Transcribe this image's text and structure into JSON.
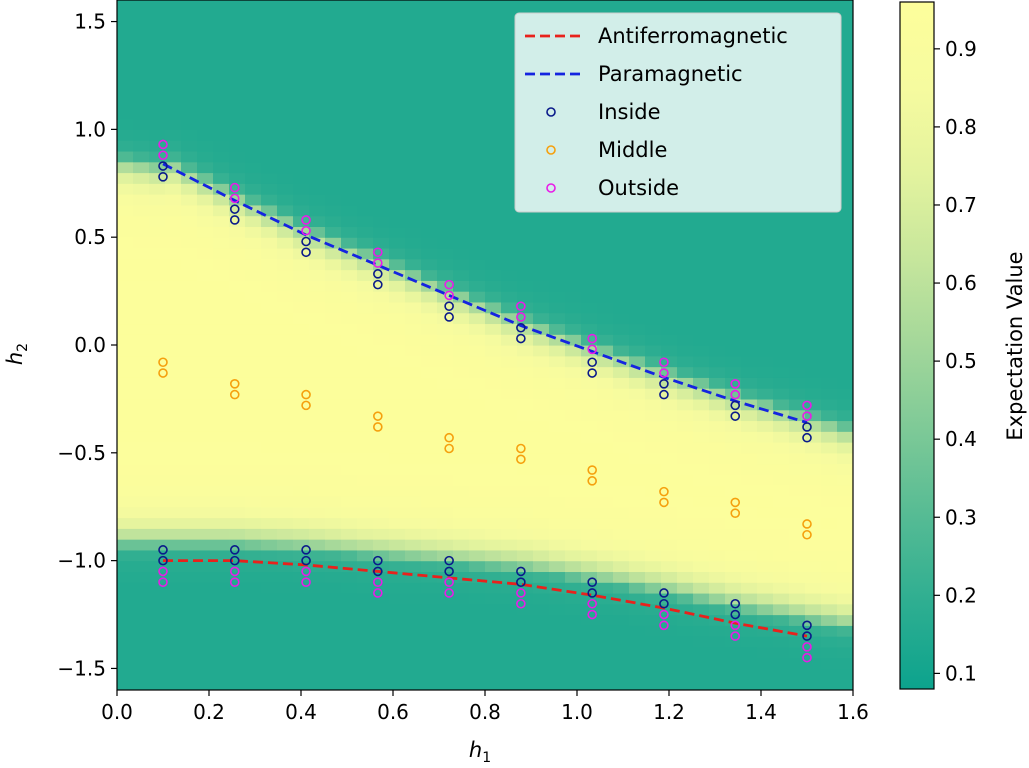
{
  "chart_data": {
    "type": "heatmap",
    "xlabel": "h",
    "xlabel_sub": "1",
    "ylabel": "h",
    "ylabel_sub": "2",
    "xlim": [
      0.0,
      1.6
    ],
    "ylim": [
      -1.6,
      1.6
    ],
    "x_ticks": [
      0.0,
      0.2,
      0.4,
      0.6,
      0.8,
      1.0,
      1.2,
      1.4,
      1.6
    ],
    "x_tick_labels": [
      "0.0",
      "0.2",
      "0.4",
      "0.6",
      "0.8",
      "1.0",
      "1.2",
      "1.4",
      "1.6"
    ],
    "y_ticks": [
      -1.5,
      -1.0,
      -0.5,
      0.0,
      0.5,
      1.0,
      1.5
    ],
    "y_tick_labels": [
      "−1.5",
      "−1.0",
      "−0.5",
      "0.0",
      "0.5",
      "1.0",
      "1.5"
    ],
    "grid": false,
    "legend_position": "top-right",
    "colorbar": {
      "label": "Expectation Value",
      "range": [
        0.08,
        0.96
      ],
      "ticks": [
        0.1,
        0.2,
        0.3,
        0.4,
        0.5,
        0.6,
        0.7,
        0.8,
        0.9
      ],
      "tick_labels": [
        "0.1",
        "0.2",
        "0.3",
        "0.4",
        "0.5",
        "0.6",
        "0.7",
        "0.8",
        "0.9"
      ],
      "colormap": [
        "#0ca38d",
        "#2eae91",
        "#55bb94",
        "#7dc997",
        "#a3d79a",
        "#c6e69c",
        "#e3f39e",
        "#f6fb9f",
        "#fdfe9b"
      ]
    },
    "heatmap": {
      "background_value": 0.15,
      "peak_value": 0.95,
      "upper_boundary_point": [
        0.1,
        0.85
      ],
      "lower_boundary_y": -0.92
    },
    "series": [
      {
        "name": "Antiferromagnetic",
        "kind": "line",
        "style": "dashed",
        "color": "#e8221c",
        "x": [
          0.1,
          0.256,
          0.411,
          0.567,
          0.722,
          0.878,
          1.033,
          1.189,
          1.344,
          1.5
        ],
        "y": [
          -1.0,
          -1.0,
          -1.02,
          -1.05,
          -1.08,
          -1.11,
          -1.16,
          -1.22,
          -1.29,
          -1.35
        ]
      },
      {
        "name": "Paramagnetic",
        "kind": "line",
        "style": "dashed",
        "color": "#1424e0",
        "x": [
          0.1,
          0.256,
          0.411,
          0.567,
          0.722,
          0.878,
          1.033,
          1.189,
          1.344,
          1.5
        ],
        "y": [
          0.84,
          0.67,
          0.51,
          0.37,
          0.23,
          0.09,
          -0.03,
          -0.15,
          -0.26,
          -0.36
        ]
      },
      {
        "name": "Inside",
        "kind": "scatter",
        "color": "#0a1a8a",
        "points": [
          [
            0.1,
            0.83
          ],
          [
            0.1,
            0.78
          ],
          [
            0.1,
            -0.95
          ],
          [
            0.1,
            -1.0
          ],
          [
            0.256,
            0.63
          ],
          [
            0.256,
            0.58
          ],
          [
            0.256,
            -0.95
          ],
          [
            0.256,
            -1.0
          ],
          [
            0.411,
            0.48
          ],
          [
            0.411,
            0.43
          ],
          [
            0.411,
            -0.95
          ],
          [
            0.411,
            -1.0
          ],
          [
            0.567,
            0.33
          ],
          [
            0.567,
            0.28
          ],
          [
            0.567,
            -1.0
          ],
          [
            0.567,
            -1.05
          ],
          [
            0.722,
            0.18
          ],
          [
            0.722,
            0.13
          ],
          [
            0.722,
            -1.0
          ],
          [
            0.722,
            -1.05
          ],
          [
            0.878,
            0.08
          ],
          [
            0.878,
            0.03
          ],
          [
            0.878,
            -1.05
          ],
          [
            0.878,
            -1.1
          ],
          [
            1.033,
            -0.08
          ],
          [
            1.033,
            -0.13
          ],
          [
            1.033,
            -1.1
          ],
          [
            1.033,
            -1.15
          ],
          [
            1.189,
            -0.18
          ],
          [
            1.189,
            -0.23
          ],
          [
            1.189,
            -1.15
          ],
          [
            1.189,
            -1.2
          ],
          [
            1.344,
            -0.28
          ],
          [
            1.344,
            -0.33
          ],
          [
            1.344,
            -1.2
          ],
          [
            1.344,
            -1.25
          ],
          [
            1.5,
            -0.38
          ],
          [
            1.5,
            -0.43
          ],
          [
            1.5,
            -1.3
          ],
          [
            1.5,
            -1.35
          ]
        ]
      },
      {
        "name": "Middle",
        "kind": "scatter",
        "color": "#f5a00e",
        "points": [
          [
            0.1,
            -0.08
          ],
          [
            0.1,
            -0.13
          ],
          [
            0.256,
            -0.18
          ],
          [
            0.256,
            -0.23
          ],
          [
            0.411,
            -0.23
          ],
          [
            0.411,
            -0.28
          ],
          [
            0.567,
            -0.33
          ],
          [
            0.567,
            -0.38
          ],
          [
            0.722,
            -0.43
          ],
          [
            0.722,
            -0.48
          ],
          [
            0.878,
            -0.48
          ],
          [
            0.878,
            -0.53
          ],
          [
            1.033,
            -0.58
          ],
          [
            1.033,
            -0.63
          ],
          [
            1.189,
            -0.68
          ],
          [
            1.189,
            -0.73
          ],
          [
            1.344,
            -0.73
          ],
          [
            1.344,
            -0.78
          ],
          [
            1.5,
            -0.83
          ],
          [
            1.5,
            -0.88
          ]
        ]
      },
      {
        "name": "Outside",
        "kind": "scatter",
        "color": "#e81ce8",
        "points": [
          [
            0.1,
            0.93
          ],
          [
            0.1,
            0.88
          ],
          [
            0.1,
            -1.05
          ],
          [
            0.1,
            -1.1
          ],
          [
            0.256,
            0.73
          ],
          [
            0.256,
            0.68
          ],
          [
            0.256,
            -1.05
          ],
          [
            0.256,
            -1.1
          ],
          [
            0.411,
            0.58
          ],
          [
            0.411,
            0.53
          ],
          [
            0.411,
            -1.05
          ],
          [
            0.411,
            -1.1
          ],
          [
            0.567,
            0.43
          ],
          [
            0.567,
            0.38
          ],
          [
            0.567,
            -1.1
          ],
          [
            0.567,
            -1.15
          ],
          [
            0.722,
            0.28
          ],
          [
            0.722,
            0.23
          ],
          [
            0.722,
            -1.1
          ],
          [
            0.722,
            -1.15
          ],
          [
            0.878,
            0.18
          ],
          [
            0.878,
            0.13
          ],
          [
            0.878,
            -1.15
          ],
          [
            0.878,
            -1.2
          ],
          [
            1.033,
            0.03
          ],
          [
            1.033,
            -0.02
          ],
          [
            1.033,
            -1.2
          ],
          [
            1.033,
            -1.25
          ],
          [
            1.189,
            -0.08
          ],
          [
            1.189,
            -0.13
          ],
          [
            1.189,
            -1.25
          ],
          [
            1.189,
            -1.3
          ],
          [
            1.344,
            -0.18
          ],
          [
            1.344,
            -0.23
          ],
          [
            1.344,
            -1.3
          ],
          [
            1.344,
            -1.35
          ],
          [
            1.5,
            -0.28
          ],
          [
            1.5,
            -0.33
          ],
          [
            1.5,
            -1.4
          ],
          [
            1.5,
            -1.45
          ]
        ]
      }
    ]
  }
}
